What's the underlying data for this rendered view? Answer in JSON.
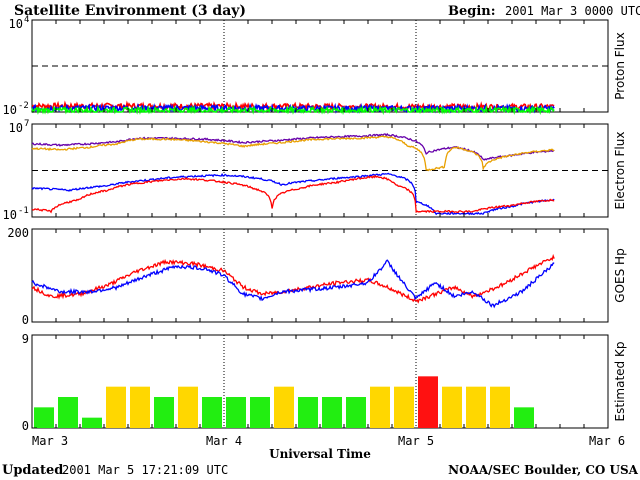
{
  "header": {
    "title": "Satellite Environment (3 day)",
    "begin_label": "Begin:",
    "begin_value": "2001 Mar 3 0000 UTC"
  },
  "footer": {
    "updated_label": "Updated",
    "updated_value": "2001 Mar  5 17:21:09 UTC",
    "credit": "NOAA/SEC Boulder, CO USA"
  },
  "xaxis": {
    "label": "Universal Time",
    "ticks": [
      "Mar 3",
      "Mar 4",
      "Mar 5",
      "Mar 6"
    ],
    "range_days": [
      0,
      3
    ],
    "data_end_day": 2.72
  },
  "colors": {
    "red": "#ff0000",
    "blue": "#0000ff",
    "green": "#00ff00",
    "orange": "#e8a000",
    "purple": "#6600aa",
    "kp_green": "#22ee11",
    "kp_yellow": "#ffd700",
    "kp_red": "#ff1111"
  },
  "chart_data": [
    {
      "id": "proton",
      "type": "line",
      "ylabel": "Proton Flux",
      "yscale": "log",
      "ylim": [
        0.01,
        10000
      ],
      "ytick_labels": {
        "top": "10",
        "top_exp": "4",
        "bottom": "10",
        "bottom_exp": "-2"
      },
      "threshold": 10,
      "series": [
        {
          "color": "red",
          "x": [
            0,
            0.5,
            1.0,
            1.5,
            2.0,
            2.5,
            2.72
          ],
          "y": [
            0.025,
            0.025,
            0.024,
            0.023,
            0.022,
            0.022,
            0.022
          ]
        },
        {
          "color": "blue",
          "x": [
            0,
            0.5,
            1.0,
            1.5,
            2.0,
            2.5,
            2.72
          ],
          "y": [
            0.018,
            0.018,
            0.018,
            0.017,
            0.017,
            0.017,
            0.017
          ]
        },
        {
          "color": "green",
          "x": [
            0,
            0.5,
            1.0,
            1.5,
            2.0,
            2.5,
            2.72
          ],
          "y": [
            0.013,
            0.013,
            0.013,
            0.013,
            0.013,
            0.013,
            0.013
          ]
        }
      ]
    },
    {
      "id": "electron",
      "type": "line",
      "ylabel": "Electron Flux",
      "yscale": "log",
      "ylim": [
        0.1,
        10000000
      ],
      "ytick_labels": {
        "top": "10",
        "top_exp": "7",
        "bottom": "10",
        "bottom_exp": "-1"
      },
      "threshold": 1000,
      "series": [
        {
          "color": "purple",
          "x": [
            0,
            0.15,
            0.3,
            0.45,
            0.55,
            0.7,
            0.9,
            1.1,
            1.3,
            1.5,
            1.7,
            1.85,
            1.95,
            2.05,
            2.2,
            2.35,
            2.5,
            2.72
          ],
          "y": [
            200000,
            150000,
            200000,
            300000,
            600000,
            600000,
            500000,
            250000,
            400000,
            700000,
            900000,
            1200000,
            600000,
            30000,
            100000,
            8000,
            20000,
            50000
          ]
        },
        {
          "color": "orange",
          "x": [
            0,
            0.15,
            0.3,
            0.45,
            0.55,
            0.7,
            0.9,
            1.1,
            1.3,
            1.5,
            1.7,
            1.85,
            1.95,
            2.05,
            2.15,
            2.2,
            2.35,
            2.5,
            2.72
          ],
          "y": [
            80000,
            60000,
            100000,
            200000,
            500000,
            500000,
            300000,
            120000,
            250000,
            500000,
            600000,
            800000,
            150000,
            1000,
            2000,
            100000,
            1500,
            20000,
            60000
          ]
        },
        {
          "color": "blue",
          "x": [
            0,
            0.2,
            0.4,
            0.6,
            0.8,
            1.0,
            1.1,
            1.3,
            1.5,
            1.7,
            1.85,
            2.0,
            2.1,
            2.2,
            2.35,
            2.5,
            2.72
          ],
          "y": [
            30,
            20,
            50,
            150,
            300,
            400,
            300,
            60,
            150,
            300,
            500,
            2,
            0.2,
            0.2,
            0.2,
            0.8,
            3
          ]
        },
        {
          "color": "red",
          "x": [
            0,
            0.1,
            0.25,
            0.4,
            0.6,
            0.8,
            1.0,
            1.15,
            1.25,
            1.4,
            1.6,
            1.8,
            1.9,
            2.0,
            2.1,
            2.3,
            2.5,
            2.72
          ],
          "y": [
            0.5,
            0.3,
            3,
            20,
            100,
            200,
            100,
            30,
            0.5,
            30,
            100,
            300,
            50,
            0.3,
            0.3,
            0.3,
            1,
            3
          ]
        }
      ]
    },
    {
      "id": "hp",
      "type": "line",
      "ylabel": "GOES Hp",
      "yscale": "linear",
      "ylim": [
        0,
        200
      ],
      "ytick_labels": {
        "top": "200",
        "bottom": "0"
      },
      "series": [
        {
          "color": "red",
          "x": [
            0,
            0.1,
            0.25,
            0.4,
            0.55,
            0.7,
            0.85,
            1.0,
            1.1,
            1.2,
            1.3,
            1.45,
            1.6,
            1.75,
            1.85,
            1.95,
            2.0,
            2.1,
            2.2,
            2.3,
            2.45,
            2.6,
            2.72
          ],
          "y": [
            75,
            55,
            60,
            80,
            110,
            130,
            125,
            110,
            75,
            60,
            65,
            75,
            85,
            90,
            75,
            55,
            45,
            60,
            75,
            55,
            80,
            115,
            140
          ]
        },
        {
          "color": "blue",
          "x": [
            0,
            0.15,
            0.3,
            0.45,
            0.6,
            0.75,
            0.9,
            1.0,
            1.1,
            1.2,
            1.3,
            1.45,
            1.6,
            1.75,
            1.85,
            1.95,
            2.0,
            2.1,
            2.2,
            2.3,
            2.4,
            2.55,
            2.72
          ],
          "y": [
            85,
            65,
            65,
            75,
            100,
            120,
            115,
            100,
            60,
            50,
            65,
            70,
            75,
            85,
            130,
            75,
            50,
            85,
            55,
            65,
            35,
            65,
            125
          ]
        }
      ]
    },
    {
      "id": "kp",
      "type": "bar",
      "ylabel": "Estimated Kp",
      "ylim": [
        0,
        9
      ],
      "ytick_labels": {
        "top": "9",
        "bottom": "0"
      },
      "bar_width_days": 0.125,
      "values": [
        2,
        3,
        1,
        4,
        4,
        3,
        4,
        3,
        3,
        3,
        4,
        3,
        3,
        3,
        4,
        4,
        5,
        4,
        4,
        4,
        2
      ],
      "bar_colors": [
        "kp_green",
        "kp_green",
        "kp_green",
        "kp_yellow",
        "kp_yellow",
        "kp_green",
        "kp_yellow",
        "kp_green",
        "kp_green",
        "kp_green",
        "kp_yellow",
        "kp_green",
        "kp_green",
        "kp_green",
        "kp_yellow",
        "kp_yellow",
        "kp_red",
        "kp_yellow",
        "kp_yellow",
        "kp_yellow",
        "kp_green"
      ]
    }
  ]
}
